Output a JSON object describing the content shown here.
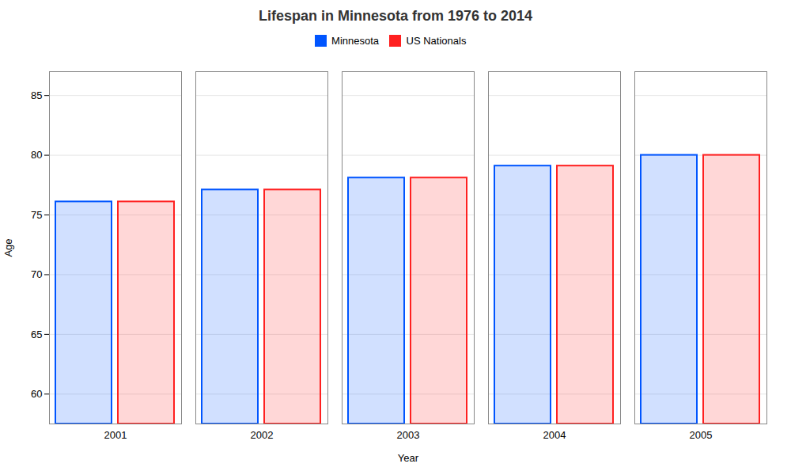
{
  "chart_data": {
    "type": "bar",
    "title": "Lifespan in Minnesota from 1976 to 2014",
    "xlabel": "Year",
    "ylabel": "Age",
    "categories": [
      "2001",
      "2002",
      "2003",
      "2004",
      "2005"
    ],
    "series": [
      {
        "name": "Minnesota",
        "color": "#0055ff",
        "values": [
          76.1,
          77.1,
          78.1,
          79.1,
          80.0
        ]
      },
      {
        "name": "US Nationals",
        "color": "#ff2020",
        "values": [
          76.1,
          77.1,
          78.1,
          79.1,
          80.0
        ]
      }
    ],
    "ylim": [
      57.5,
      87
    ],
    "yticks": [
      60,
      65,
      70,
      75,
      80,
      85
    ],
    "grid": true,
    "legend": "top"
  }
}
